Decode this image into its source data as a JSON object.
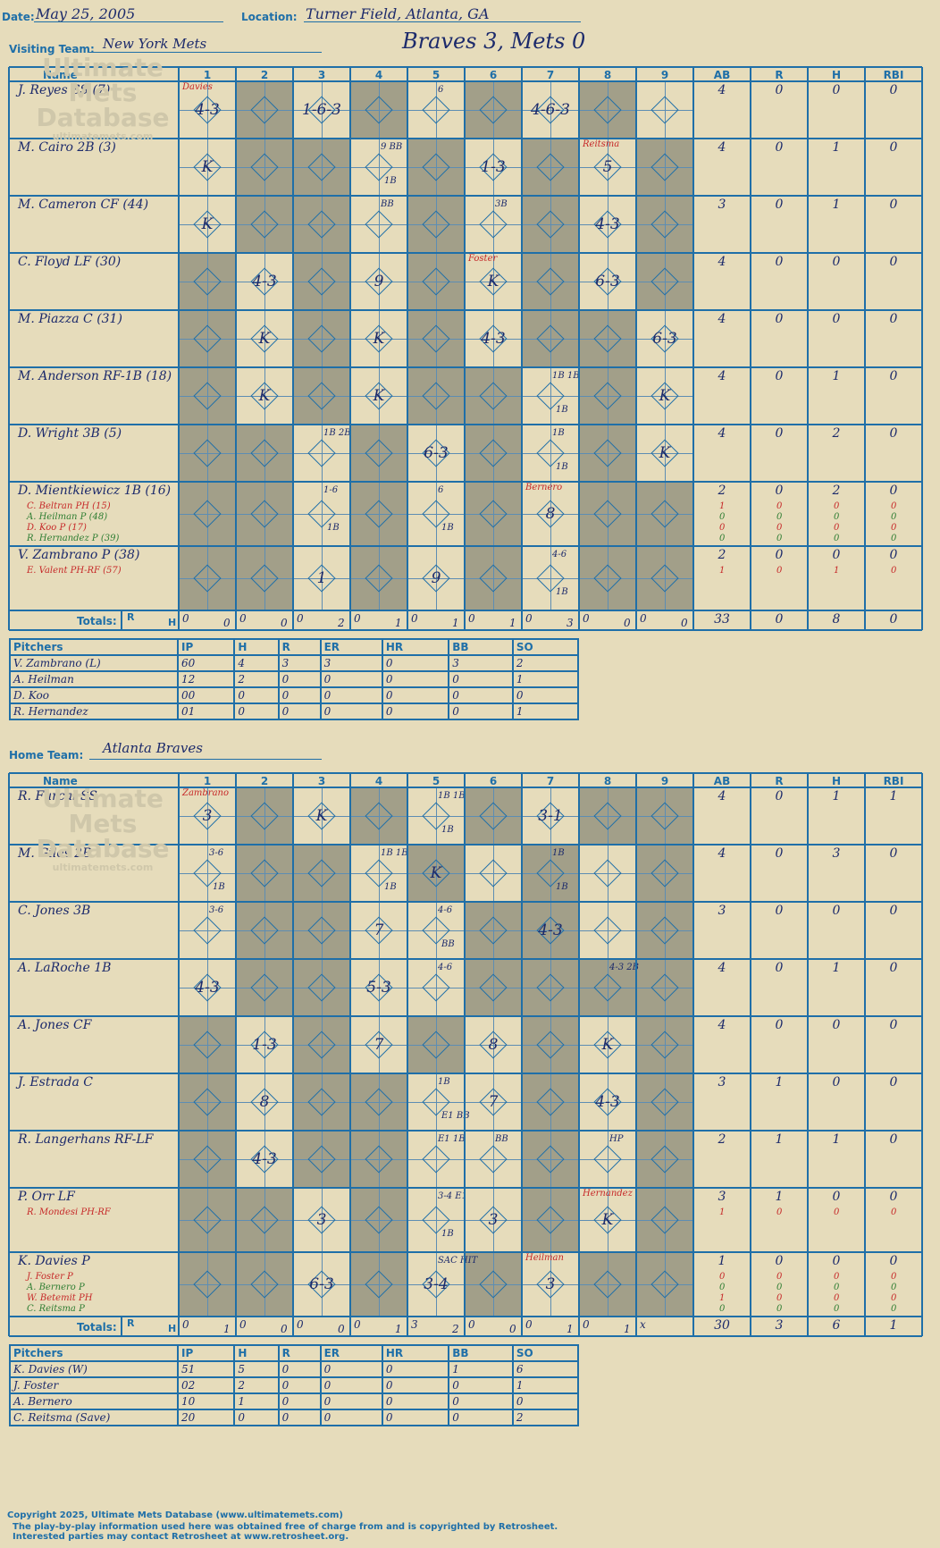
{
  "header": {
    "date_label": "Date:",
    "date": "May 25, 2005",
    "location_label": "Location:",
    "location": "Turner Field, Atlanta, GA",
    "visiting_label": "Visiting Team:",
    "visiting": "New York Mets",
    "home_label": "Home Team:",
    "home": "Atlanta Braves",
    "result": "Braves 3, Mets 0"
  },
  "cols": {
    "name": "Name",
    "innings": [
      "1",
      "2",
      "3",
      "4",
      "5",
      "6",
      "7",
      "8",
      "9"
    ],
    "stats": [
      "AB",
      "R",
      "H",
      "RBI"
    ],
    "totals": "Totals:",
    "r": "R",
    "h": "H"
  },
  "visitors": {
    "rows": [
      {
        "name": "J. Reyes SS (7)",
        "stats": [
          "4",
          "0",
          "0",
          "0"
        ],
        "subs": []
      },
      {
        "name": "M. Cairo 2B (3)",
        "stats": [
          "4",
          "0",
          "1",
          "0"
        ],
        "subs": []
      },
      {
        "name": "M. Cameron CF (44)",
        "stats": [
          "3",
          "0",
          "1",
          "0"
        ],
        "subs": []
      },
      {
        "name": "C. Floyd LF (30)",
        "stats": [
          "4",
          "0",
          "0",
          "0"
        ],
        "subs": []
      },
      {
        "name": "M. Piazza C (31)",
        "stats": [
          "4",
          "0",
          "0",
          "0"
        ],
        "subs": []
      },
      {
        "name": "M. Anderson RF-1B (18)",
        "stats": [
          "4",
          "0",
          "1",
          "0"
        ],
        "subs": []
      },
      {
        "name": "D. Wright 3B (5)",
        "stats": [
          "4",
          "0",
          "2",
          "0"
        ],
        "subs": []
      },
      {
        "name": "D. Mientkiewicz 1B (16)",
        "stats": [
          "2",
          "0",
          "2",
          "0"
        ],
        "subs": [
          {
            "name": "C. Beltran PH (15)",
            "stats": [
              "1",
              "0",
              "0",
              "0"
            ]
          },
          {
            "name": "A. Heilman P (48)",
            "stats": [
              "0",
              "0",
              "0",
              "0"
            ]
          },
          {
            "name": "D. Koo P (17)",
            "stats": [
              "0",
              "0",
              "0",
              "0"
            ]
          },
          {
            "name": "R. Hernandez P (39)",
            "stats": [
              "0",
              "0",
              "0",
              "0"
            ]
          }
        ]
      },
      {
        "name": "V. Zambrano P (38)",
        "stats": [
          "2",
          "0",
          "0",
          "0"
        ],
        "subs": [
          {
            "name": "E. Valent PH-RF (57)",
            "stats": [
              "1",
              "0",
              "1",
              "0"
            ]
          }
        ]
      }
    ],
    "inning_totals": [
      [
        "0",
        "0"
      ],
      [
        "0",
        "0"
      ],
      [
        "0",
        "2"
      ],
      [
        "0",
        "1"
      ],
      [
        "0",
        "1"
      ],
      [
        "0",
        "1"
      ],
      [
        "0",
        "3"
      ],
      [
        "0",
        "0"
      ],
      [
        "0",
        "0"
      ]
    ],
    "totals": [
      "33",
      "0",
      "8",
      "0"
    ],
    "pitchers": {
      "headers": [
        "Pitchers",
        "IP",
        "H",
        "R",
        "ER",
        "HR",
        "BB",
        "SO"
      ],
      "rows": [
        [
          "V. Zambrano (L)",
          "60",
          "4",
          "3",
          "3",
          "0",
          "3",
          "2"
        ],
        [
          "A. Heilman",
          "12",
          "2",
          "0",
          "0",
          "0",
          "0",
          "1"
        ],
        [
          "D. Koo",
          "00",
          "0",
          "0",
          "0",
          "0",
          "0",
          "0"
        ],
        [
          "R. Hernandez",
          "01",
          "0",
          "0",
          "0",
          "0",
          "0",
          "1"
        ]
      ]
    }
  },
  "home_team": {
    "rows": [
      {
        "name": "R. Furcal SS",
        "stats": [
          "4",
          "0",
          "1",
          "1"
        ],
        "subs": []
      },
      {
        "name": "M. Giles 2B",
        "stats": [
          "4",
          "0",
          "3",
          "0"
        ],
        "subs": []
      },
      {
        "name": "C. Jones 3B",
        "stats": [
          "3",
          "0",
          "0",
          "0"
        ],
        "subs": []
      },
      {
        "name": "A. LaRoche 1B",
        "stats": [
          "4",
          "0",
          "1",
          "0"
        ],
        "subs": []
      },
      {
        "name": "A. Jones CF",
        "stats": [
          "4",
          "0",
          "0",
          "0"
        ],
        "subs": []
      },
      {
        "name": "J. Estrada C",
        "stats": [
          "3",
          "1",
          "0",
          "0"
        ],
        "subs": []
      },
      {
        "name": "R. Langerhans RF-LF",
        "stats": [
          "2",
          "1",
          "1",
          "0"
        ],
        "subs": []
      },
      {
        "name": "P. Orr LF",
        "stats": [
          "3",
          "1",
          "0",
          "0"
        ],
        "subs": [
          {
            "name": "R. Mondesi PH-RF",
            "stats": [
              "1",
              "0",
              "0",
              "0"
            ]
          }
        ]
      },
      {
        "name": "K. Davies P",
        "stats": [
          "1",
          "0",
          "0",
          "0"
        ],
        "subs": [
          {
            "name": "J. Foster P",
            "stats": [
              "0",
              "0",
              "0",
              "0"
            ]
          },
          {
            "name": "A. Bernero P",
            "stats": [
              "0",
              "0",
              "0",
              "0"
            ]
          },
          {
            "name": "W. Betemit PH",
            "stats": [
              "1",
              "0",
              "0",
              "0"
            ]
          },
          {
            "name": "C. Reitsma P",
            "stats": [
              "0",
              "0",
              "0",
              "0"
            ]
          }
        ]
      }
    ],
    "inning_totals": [
      [
        "0",
        "1"
      ],
      [
        "0",
        "0"
      ],
      [
        "0",
        "0"
      ],
      [
        "0",
        "1"
      ],
      [
        "3",
        "2"
      ],
      [
        "0",
        "0"
      ],
      [
        "0",
        "1"
      ],
      [
        "0",
        "1"
      ],
      [
        "x",
        ""
      ]
    ],
    "totals": [
      "30",
      "3",
      "6",
      "1"
    ],
    "pitchers": {
      "headers": [
        "Pitchers",
        "IP",
        "H",
        "R",
        "ER",
        "HR",
        "BB",
        "SO"
      ],
      "rows": [
        [
          "K. Davies (W)",
          "51",
          "5",
          "0",
          "0",
          "0",
          "1",
          "6"
        ],
        [
          "J. Foster",
          "02",
          "2",
          "0",
          "0",
          "0",
          "0",
          "1"
        ],
        [
          "A. Bernero",
          "10",
          "1",
          "0",
          "0",
          "0",
          "0",
          "0"
        ],
        [
          "C. Reitsma (Save)",
          "20",
          "0",
          "0",
          "0",
          "0",
          "0",
          "2"
        ]
      ]
    }
  },
  "plays_v": [
    [
      0,
      0,
      "4-3",
      "Davies"
    ],
    [
      0,
      2,
      "1-6-3",
      ""
    ],
    [
      0,
      4,
      "",
      "6"
    ],
    [
      0,
      6,
      "4-6-3",
      ""
    ],
    [
      1,
      0,
      "K",
      ""
    ],
    [
      1,
      3,
      "",
      "9  BB|1B"
    ],
    [
      1,
      5,
      "1-3",
      ""
    ],
    [
      1,
      7,
      "5",
      "Reitsma"
    ],
    [
      2,
      0,
      "K",
      ""
    ],
    [
      2,
      3,
      "",
      "BB"
    ],
    [
      2,
      5,
      "",
      "3B"
    ],
    [
      2,
      7,
      "4-3",
      ""
    ],
    [
      3,
      1,
      "4-3",
      ""
    ],
    [
      3,
      3,
      "9",
      ""
    ],
    [
      3,
      5,
      "K",
      "Foster"
    ],
    [
      3,
      7,
      "6-3",
      ""
    ],
    [
      4,
      1,
      "K",
      ""
    ],
    [
      4,
      3,
      "K",
      ""
    ],
    [
      4,
      5,
      "4-3",
      ""
    ],
    [
      4,
      8,
      "6-3",
      ""
    ],
    [
      5,
      1,
      "K",
      ""
    ],
    [
      5,
      3,
      "K",
      ""
    ],
    [
      5,
      6,
      "",
      "1B 1B|1B"
    ],
    [
      5,
      8,
      "K",
      ""
    ],
    [
      6,
      2,
      "",
      "1B 2B"
    ],
    [
      6,
      4,
      "6-3",
      ""
    ],
    [
      6,
      6,
      "",
      "1B|1B"
    ],
    [
      6,
      8,
      "K",
      ""
    ],
    [
      7,
      2,
      "",
      "1-6|1B"
    ],
    [
      7,
      4,
      "",
      "6|1B"
    ],
    [
      7,
      6,
      "8",
      "Bernero"
    ],
    [
      8,
      2,
      "1",
      ""
    ],
    [
      8,
      4,
      "9",
      ""
    ],
    [
      8,
      6,
      "",
      "4-6|1B"
    ]
  ],
  "plays_h": [
    [
      0,
      0,
      "3",
      "Zambrano"
    ],
    [
      0,
      2,
      "K",
      ""
    ],
    [
      0,
      4,
      "",
      "1B 1B|1B"
    ],
    [
      0,
      6,
      "3-1",
      ""
    ],
    [
      1,
      0,
      "",
      "3-6|1B"
    ],
    [
      1,
      3,
      "",
      "1B 1B|1B"
    ],
    [
      1,
      4,
      "K",
      ""
    ],
    [
      1,
      6,
      "",
      "1B|1B"
    ],
    [
      2,
      0,
      "",
      "3-6"
    ],
    [
      2,
      3,
      "7",
      ""
    ],
    [
      2,
      4,
      "",
      "4-6|BB"
    ],
    [
      2,
      6,
      "4-3",
      ""
    ],
    [
      3,
      0,
      "4-3",
      ""
    ],
    [
      3,
      3,
      "5-3",
      ""
    ],
    [
      3,
      4,
      "",
      "4-6"
    ],
    [
      3,
      7,
      "",
      "4-3 2B"
    ],
    [
      4,
      1,
      "1-3",
      ""
    ],
    [
      4,
      3,
      "7",
      ""
    ],
    [
      4,
      5,
      "8",
      ""
    ],
    [
      4,
      7,
      "K",
      ""
    ],
    [
      5,
      1,
      "8",
      ""
    ],
    [
      5,
      4,
      "",
      "1B|E1 BB"
    ],
    [
      5,
      5,
      "7",
      ""
    ],
    [
      5,
      7,
      "4-3",
      ""
    ],
    [
      6,
      1,
      "4-3",
      ""
    ],
    [
      6,
      4,
      "",
      "E1 1B"
    ],
    [
      6,
      5,
      "",
      "BB"
    ],
    [
      6,
      7,
      "",
      "HP"
    ],
    [
      7,
      2,
      "3",
      ""
    ],
    [
      7,
      4,
      "",
      "3-4 E1|1B"
    ],
    [
      7,
      5,
      "3",
      ""
    ],
    [
      7,
      7,
      "K",
      "Hernandez"
    ],
    [
      8,
      2,
      "6-3",
      ""
    ],
    [
      8,
      4,
      "3-4",
      "SAC HIT"
    ],
    [
      8,
      6,
      "3",
      "Heilman"
    ]
  ],
  "watermark": {
    "line1": "Ultimate",
    "line2": "Mets",
    "line3": "Database",
    "url": "ultimatemets.com"
  },
  "footer": {
    "line1": "Copyright 2025, Ultimate Mets Database (www.ultimatemets.com)",
    "line2": "The play-by-play information used here was obtained free of charge from and is copyrighted by Retrosheet.",
    "line3": "Interested parties may contact Retrosheet at www.retrosheet.org."
  }
}
